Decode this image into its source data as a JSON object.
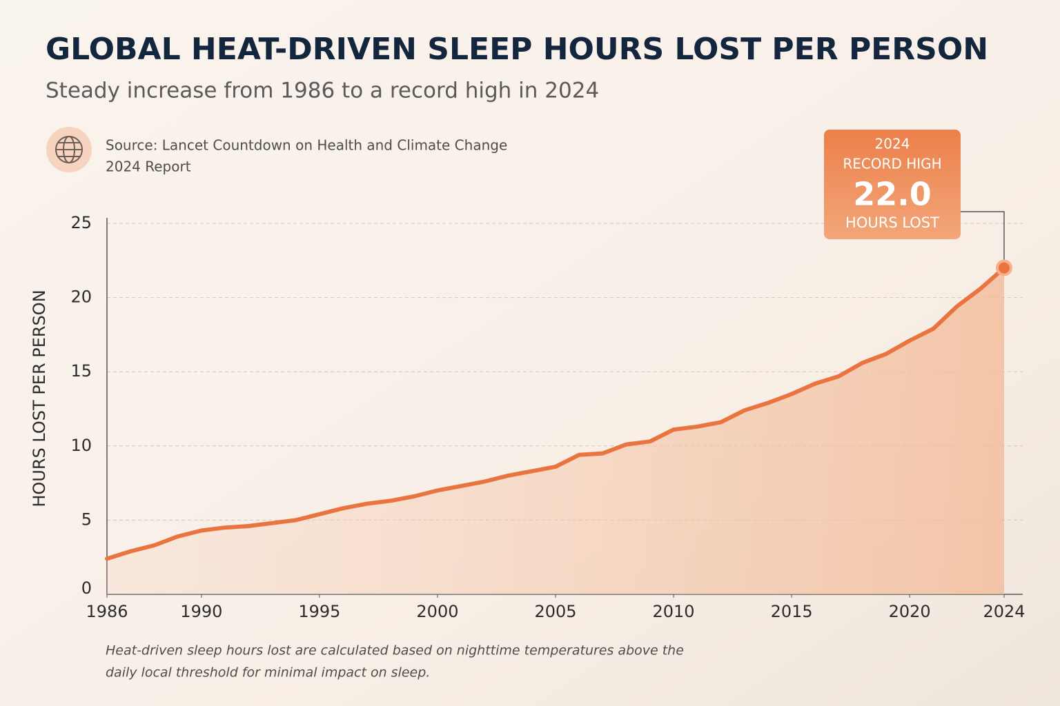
{
  "chart_data": {
    "type": "area-line",
    "title": "GLOBAL HEAT-DRIVEN SLEEP HOURS LOST PER PERSON",
    "subtitle": "Steady increase from 1986 to a record high in 2024",
    "source": [
      "Source: Lancet Countdown on Health and Climate Change",
      "2024 Report"
    ],
    "y_label": "HOURS LOST PER PERSON",
    "footnote": [
      "Heat-driven sleep hours lost are calculated based on nighttime temperatures above the",
      "daily local threshold for minimal impact on sleep."
    ],
    "x": [
      1986,
      1987,
      1988,
      1989,
      1990,
      1991,
      1992,
      1993,
      1994,
      1995,
      1996,
      1997,
      1998,
      1999,
      2000,
      2001,
      2002,
      2003,
      2004,
      2005,
      2006,
      2007,
      2008,
      2009,
      2010,
      2011,
      2012,
      2013,
      2014,
      2015,
      2016,
      2017,
      2018,
      2019,
      2020,
      2021,
      2022,
      2023,
      2024
    ],
    "values": [
      2.4,
      2.9,
      3.3,
      3.9,
      4.3,
      4.5,
      4.6,
      4.8,
      5.0,
      5.4,
      5.8,
      6.1,
      6.3,
      6.6,
      7.0,
      7.3,
      7.6,
      8.0,
      8.3,
      8.6,
      9.4,
      9.5,
      10.1,
      10.3,
      11.1,
      11.3,
      11.6,
      12.4,
      12.9,
      13.5,
      14.2,
      14.7,
      15.6,
      16.2,
      17.1,
      17.9,
      19.4,
      20.6,
      22.0
    ],
    "color": "#ea7440",
    "xlim": [
      1986,
      2024
    ],
    "xticks": [
      1986,
      1990,
      1995,
      2000,
      2005,
      2010,
      2015,
      2020,
      2024
    ],
    "ylim": [
      0,
      25
    ],
    "yticks": [
      0,
      5,
      10,
      15,
      20,
      25
    ],
    "grid": true,
    "annotation": {
      "lines": [
        "2024",
        "RECORD HIGH"
      ],
      "value_label": "22.0",
      "unit": "HOURS LOST"
    }
  }
}
